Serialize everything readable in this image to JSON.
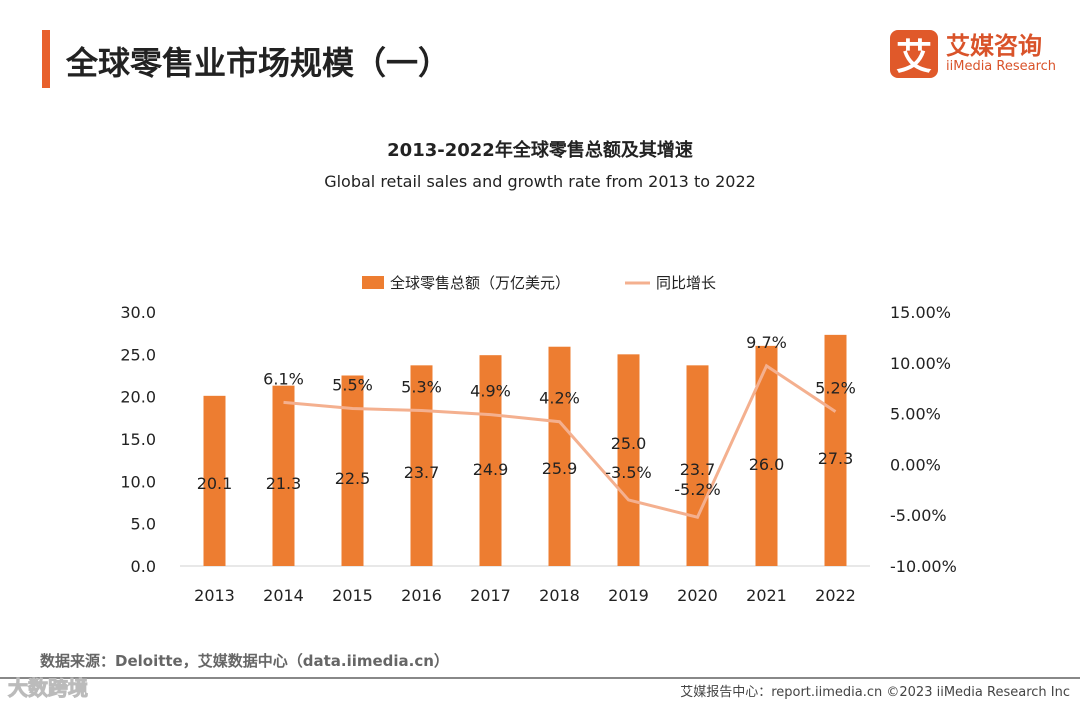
{
  "page": {
    "title": "全球零售业市场规模（一）",
    "source": "数据来源：Deloitte，艾媒数据中心（data.iimedia.cn）",
    "footer": "艾媒报告中心：report.iimedia.cn  ©2023  iiMedia Research  Inc",
    "watermark": "大数跨境"
  },
  "logo": {
    "mark": "艾",
    "cn": "艾媒咨询",
    "en": "iiMedia Research"
  },
  "colors": {
    "bar": "#ED7D31",
    "line": "#F4B08F",
    "accent": "#E8602C"
  },
  "chart_data": {
    "type": "bar+line",
    "title": "2013-2022年全球零售总额及其增速",
    "subtitle": "Global retail sales and growth rate from 2013 to 2022",
    "categories": [
      "2013",
      "2014",
      "2015",
      "2016",
      "2017",
      "2018",
      "2019",
      "2020",
      "2021",
      "2022"
    ],
    "series": [
      {
        "name": "全球零售总额（万亿美元）",
        "type": "bar",
        "axis": "left",
        "values": [
          20.1,
          21.3,
          22.5,
          23.7,
          24.9,
          25.9,
          25.0,
          23.7,
          26.0,
          27.3
        ],
        "labels": [
          "20.1",
          "21.3",
          "22.5",
          "23.7",
          "24.9",
          "25.9",
          "25.0",
          "23.7",
          "26.0",
          "27.3"
        ]
      },
      {
        "name": "同比增长",
        "type": "line",
        "axis": "right",
        "values": [
          null,
          6.1,
          5.5,
          5.3,
          4.9,
          4.2,
          -3.5,
          -5.2,
          9.7,
          5.2
        ],
        "labels": [
          "",
          "6.1%",
          "5.5%",
          "5.3%",
          "4.9%",
          "4.2%",
          "-3.5%",
          "-5.2%",
          "9.7%",
          "5.2%"
        ]
      }
    ],
    "y_left": {
      "range": [
        0,
        30
      ],
      "ticks": [
        "0.0",
        "5.0",
        "10.0",
        "15.0",
        "20.0",
        "25.0",
        "30.0"
      ]
    },
    "y_right": {
      "range": [
        -10,
        15
      ],
      "ticks": [
        "-10.00%",
        "-5.00%",
        "0.00%",
        "5.00%",
        "10.00%",
        "15.00%"
      ]
    },
    "legend": "top-center",
    "grid": false
  }
}
